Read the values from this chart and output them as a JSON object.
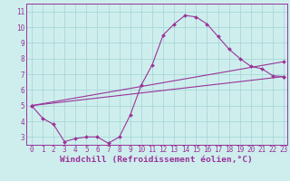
{
  "xlabel": "Windchill (Refroidissement éolien,°C)",
  "bg_color": "#ceeeed",
  "line_color": "#993399",
  "grid_color": "#a8d8d8",
  "xlim": [
    -0.5,
    23.3
  ],
  "ylim": [
    2.5,
    11.5
  ],
  "xticks": [
    0,
    1,
    2,
    3,
    4,
    5,
    6,
    7,
    8,
    9,
    10,
    11,
    12,
    13,
    14,
    15,
    16,
    17,
    18,
    19,
    20,
    21,
    22,
    23
  ],
  "yticks": [
    3,
    4,
    5,
    6,
    7,
    8,
    9,
    10,
    11
  ],
  "curve1_x": [
    0,
    1,
    2,
    3,
    4,
    5,
    6,
    7,
    8,
    9,
    10,
    11,
    12,
    13,
    14,
    15,
    16,
    17,
    18,
    19,
    20,
    21,
    22,
    23
  ],
  "curve1_y": [
    5.0,
    4.2,
    3.8,
    2.7,
    2.9,
    3.0,
    3.0,
    2.6,
    3.0,
    4.4,
    6.3,
    7.6,
    9.5,
    10.2,
    10.75,
    10.65,
    10.2,
    9.4,
    8.6,
    8.0,
    7.5,
    7.35,
    6.9,
    6.85
  ],
  "curve2_x": [
    0,
    23
  ],
  "curve2_y": [
    5.0,
    6.85
  ],
  "curve3_x": [
    0,
    23
  ],
  "curve3_y": [
    5.0,
    7.8
  ],
  "tick_fontsize": 5.5,
  "xlabel_fontsize": 6.8,
  "lw": 0.8,
  "ms": 2.0
}
